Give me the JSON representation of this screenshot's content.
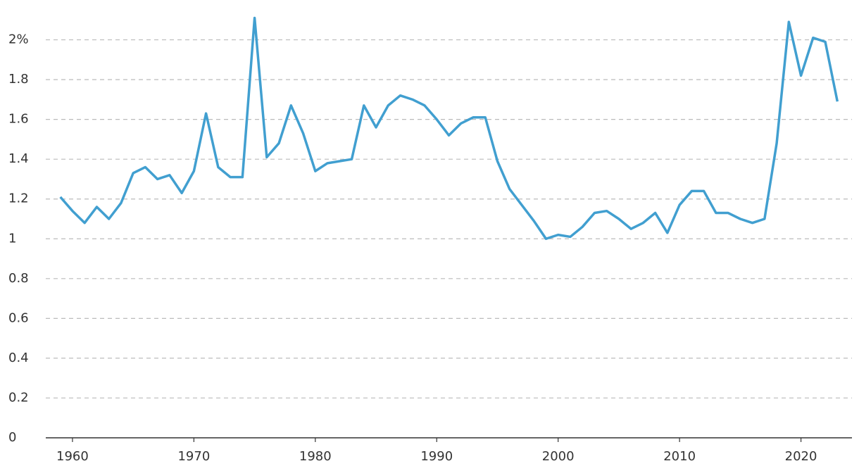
{
  "chart_data": {
    "type": "line",
    "x": [
      1959,
      1960,
      1961,
      1962,
      1963,
      1964,
      1965,
      1966,
      1967,
      1968,
      1969,
      1970,
      1971,
      1972,
      1973,
      1974,
      1975,
      1976,
      1977,
      1978,
      1979,
      1980,
      1981,
      1982,
      1983,
      1984,
      1985,
      1986,
      1987,
      1988,
      1989,
      1990,
      1991,
      1992,
      1993,
      1994,
      1995,
      1996,
      1997,
      1998,
      1999,
      2000,
      2001,
      2002,
      2003,
      2004,
      2005,
      2006,
      2007,
      2008,
      2009,
      2010,
      2011,
      2012,
      2013,
      2014,
      2015,
      2016,
      2017,
      2018,
      2019,
      2020,
      2021,
      2022,
      2023
    ],
    "series": [
      {
        "color": "#419fd0",
        "values": [
          1.21,
          1.14,
          1.08,
          1.16,
          1.1,
          1.18,
          1.33,
          1.36,
          1.3,
          1.32,
          1.23,
          1.34,
          1.63,
          1.36,
          1.31,
          1.31,
          2.11,
          1.41,
          1.48,
          1.67,
          1.53,
          1.34,
          1.38,
          1.39,
          1.4,
          1.67,
          1.56,
          1.67,
          1.72,
          1.7,
          1.67,
          1.6,
          1.52,
          1.58,
          1.61,
          1.61,
          1.39,
          1.25,
          1.17,
          1.09,
          1.0,
          1.02,
          1.01,
          1.06,
          1.13,
          1.14,
          1.1,
          1.05,
          1.08,
          1.13,
          1.03,
          1.17,
          1.24,
          1.24,
          1.13,
          1.13,
          1.1,
          1.08,
          1.1,
          1.48,
          2.09,
          1.82,
          2.01,
          1.99,
          1.69
        ]
      }
    ],
    "xlim": [
      1957.8,
      2024.2
    ],
    "xticks": [
      1960,
      1970,
      1980,
      1990,
      2000,
      2010,
      2020
    ],
    "ylim": [
      0,
      2.2
    ],
    "yticks": [
      0,
      0.2,
      0.4,
      0.6,
      0.8,
      1,
      1.2,
      1.4,
      1.6,
      1.8,
      {
        "value": 2,
        "label": "2%"
      }
    ],
    "grid": true
  }
}
